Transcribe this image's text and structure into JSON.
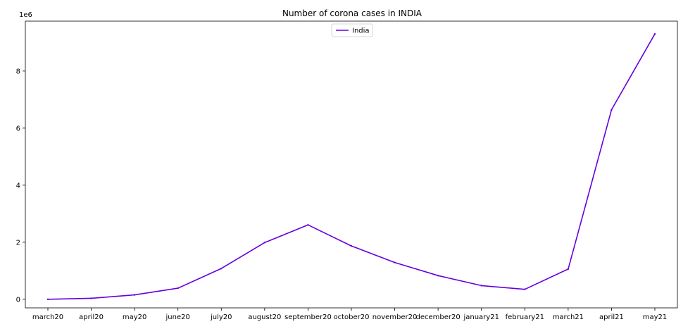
{
  "chart_data": {
    "type": "line",
    "title": "Number of corona cases in INDIA",
    "xlabel": "",
    "ylabel": "",
    "y_offset_label": "1e6",
    "categories": [
      "march20",
      "april20",
      "may20",
      "june20",
      "july20",
      "august20",
      "september20",
      "october20",
      "november20",
      "december20",
      "january21",
      "february21",
      "march21",
      "april21",
      "may21"
    ],
    "series": [
      {
        "name": "India",
        "color": "#6600dd",
        "values": [
          1000,
          35000,
          155000,
          390000,
          1080000,
          1990000,
          2610000,
          1870000,
          1290000,
          830000,
          480000,
          350000,
          1060000,
          6640000,
          9300000
        ]
      }
    ],
    "ylim": [
      -300000,
      9750000
    ],
    "yticks": [
      0,
      2000000,
      4000000,
      6000000,
      8000000
    ],
    "ytick_labels": [
      "0",
      "2",
      "4",
      "6",
      "8"
    ],
    "grid": false,
    "legend_position": "upper center"
  }
}
